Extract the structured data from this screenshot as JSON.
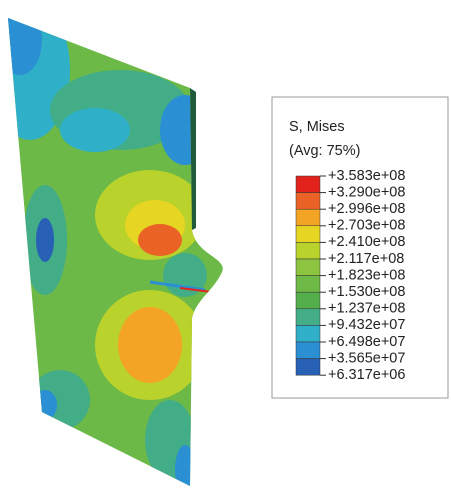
{
  "legend": {
    "title": "S, Mises",
    "subtitle": "(Avg: 75%)",
    "labels": [
      "+3.583e+08",
      "+3.290e+08",
      "+2.996e+08",
      "+2.703e+08",
      "+2.410e+08",
      "+2.117e+08",
      "+1.823e+08",
      "+1.530e+08",
      "+1.237e+08",
      "+9.432e+07",
      "+6.498e+07",
      "+3.565e+07",
      "+6.317e+06"
    ],
    "colors": [
      "#e2231c",
      "#eb6226",
      "#f4a424",
      "#e6d522",
      "#b9d22c",
      "#8dc540",
      "#6fb947",
      "#55ae4c",
      "#42ad86",
      "#2fb0c8",
      "#2b8fd3",
      "#2760b5"
    ]
  }
}
